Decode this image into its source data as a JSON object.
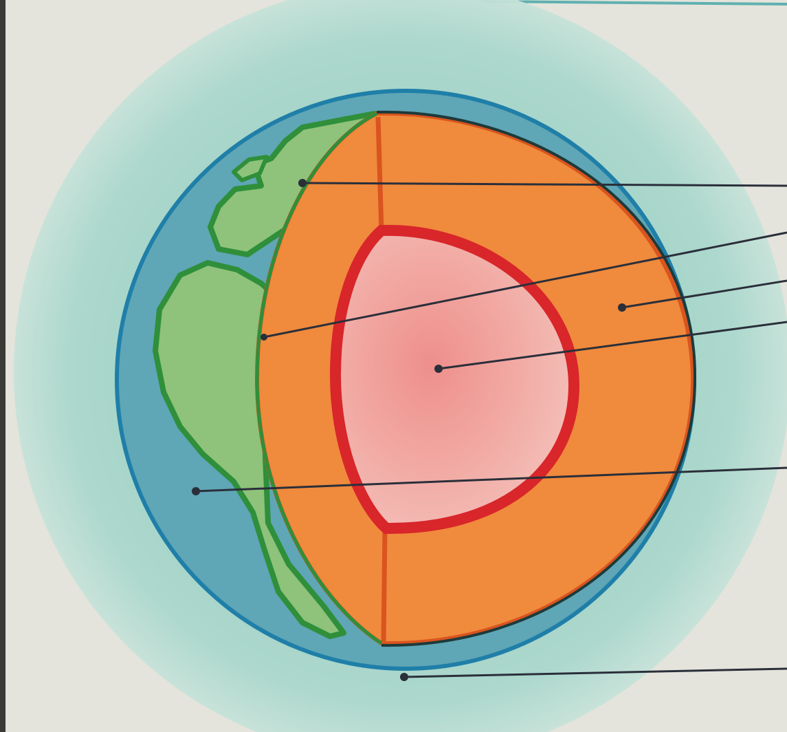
{
  "diagram": {
    "colors": {
      "paper": "#e4e4dc",
      "atmosphere": "#9fd1c6",
      "ocean": "#5fa6b6",
      "ocean_outline": "#1f7fa8",
      "land": "#8fc27a",
      "land_outline": "#2f8f3a",
      "mantle": "#f08a3c",
      "mantle_outline": "#d9541f",
      "core": "#f2a9a3",
      "core_outline": "#d8262a",
      "earth_outline": "#1d3a3a",
      "leader_line": "#2a2f3a"
    },
    "layers": [
      "atmosphere",
      "hydrosphere",
      "continental-crust",
      "crust",
      "mantle",
      "core"
    ],
    "labels": []
  }
}
